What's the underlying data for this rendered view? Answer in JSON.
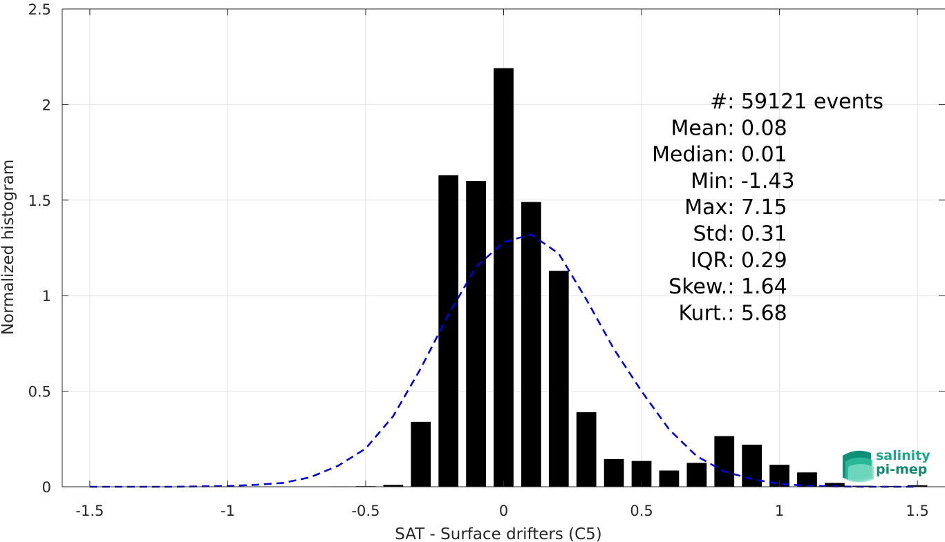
{
  "chart_data": {
    "type": "bar",
    "xlabel": "SAT - Surface drifters (C5)",
    "ylabel": "Normalized histogram",
    "xlim": [
      -1.6,
      1.6
    ],
    "ylim": [
      0,
      2.5
    ],
    "grid": true,
    "xticks": [
      -1.5,
      -1,
      -0.5,
      0,
      0.5,
      1,
      1.5
    ],
    "xtick_labels": [
      "-1.5",
      "-1",
      "-0.5",
      "0",
      "0.5",
      "1",
      "1.5"
    ],
    "yticks": [
      0,
      0.5,
      1,
      1.5,
      2,
      2.5
    ],
    "ytick_labels": [
      "0",
      "0.5",
      "1",
      "1.5",
      "2",
      "2.5"
    ],
    "bar_color": "#000000",
    "bar_width": 0.072,
    "histogram": {
      "x": [
        -0.6,
        -0.5,
        -0.4,
        -0.3,
        -0.2,
        -0.1,
        0.0,
        0.1,
        0.2,
        0.3,
        0.4,
        0.5,
        0.6,
        0.7,
        0.8,
        0.9,
        1.0,
        1.1,
        1.2,
        1.3,
        1.4,
        1.5
      ],
      "values": [
        0.002,
        0.003,
        0.01,
        0.34,
        1.63,
        1.6,
        2.19,
        1.49,
        1.13,
        0.39,
        0.145,
        0.135,
        0.085,
        0.125,
        0.265,
        0.22,
        0.115,
        0.075,
        0.02,
        0.005,
        0.004,
        0.008
      ]
    },
    "fit_curve": {
      "style": "dashed",
      "color": "#0000e6",
      "x": [
        -1.5,
        -1.4,
        -1.3,
        -1.2,
        -1.1,
        -1.0,
        -0.9,
        -0.8,
        -0.7,
        -0.6,
        -0.5,
        -0.4,
        -0.3,
        -0.2,
        -0.1,
        0.0,
        0.1,
        0.2,
        0.3,
        0.4,
        0.5,
        0.6,
        0.7,
        0.8,
        0.9,
        1.0,
        1.1,
        1.2,
        1.3,
        1.4,
        1.5
      ],
      "y": [
        0.0,
        0.0,
        0.0,
        0.0,
        0.002,
        0.004,
        0.01,
        0.02,
        0.05,
        0.11,
        0.2,
        0.37,
        0.62,
        0.9,
        1.15,
        1.28,
        1.32,
        1.22,
        0.98,
        0.72,
        0.5,
        0.3,
        0.16,
        0.08,
        0.04,
        0.015,
        0.005,
        0.002,
        0.0,
        0.0,
        0.0
      ]
    },
    "stats": [
      {
        "label": "#  ",
        "value": ": 59121 events"
      },
      {
        "label": "Mean ",
        "value": ": 0.08"
      },
      {
        "label": "Median ",
        "value": ": 0.01"
      },
      {
        "label": "Min ",
        "value": ": -1.43"
      },
      {
        "label": "Max ",
        "value": ": 7.15"
      },
      {
        "label": "Std ",
        "value": ": 0.31"
      },
      {
        "label": "IQR ",
        "value": ": 0.29"
      },
      {
        "label": "Skew. ",
        "value": ": 1.64"
      },
      {
        "label": "Kurt. ",
        "value": ": 5.68"
      }
    ]
  },
  "logo": {
    "line1": "salinity",
    "line2": "pi-mep",
    "color": "#1aaa8c"
  }
}
